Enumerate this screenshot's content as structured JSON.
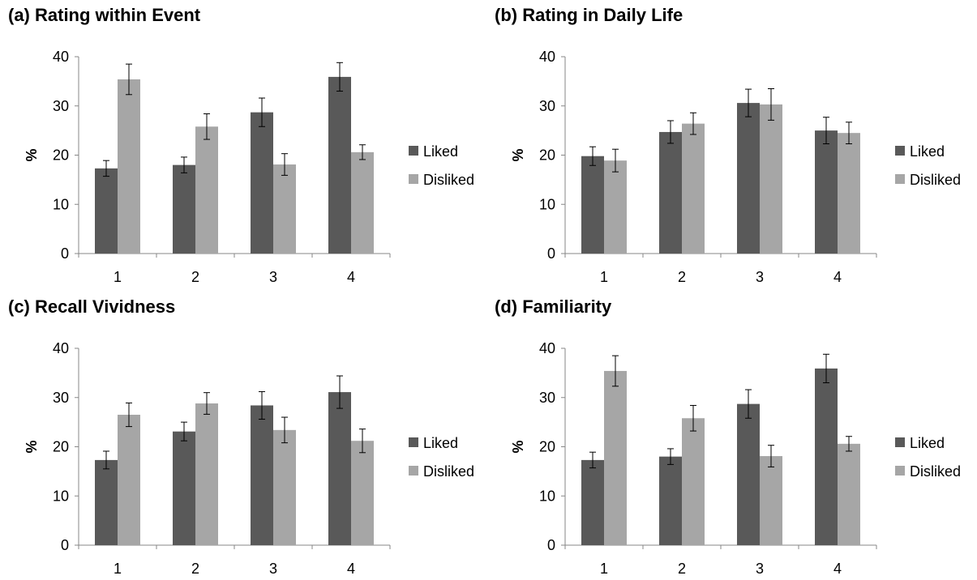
{
  "colors": {
    "liked": "#595959",
    "disliked": "#a6a6a6",
    "axis": "#878787",
    "error": "#000000"
  },
  "chart_data": [
    {
      "type": "bar",
      "title": "(a) Rating within Event",
      "ylabel": "%",
      "xlabel": "",
      "ylim": [
        0,
        40
      ],
      "yticks": [
        0,
        10,
        20,
        30,
        40
      ],
      "categories": [
        "1",
        "2",
        "3",
        "4"
      ],
      "legend_position": "right",
      "series": [
        {
          "name": "Liked",
          "values": [
            17.3,
            18.0,
            28.7,
            35.9
          ],
          "errors": [
            1.6,
            1.6,
            2.9,
            2.9
          ]
        },
        {
          "name": "Disliked",
          "values": [
            35.4,
            25.8,
            18.1,
            20.6
          ],
          "errors": [
            3.1,
            2.6,
            2.2,
            1.5
          ]
        }
      ]
    },
    {
      "type": "bar",
      "title": "(b) Rating in Daily Life",
      "ylabel": "%",
      "xlabel": "",
      "ylim": [
        0,
        40
      ],
      "yticks": [
        0,
        10,
        20,
        30,
        40
      ],
      "categories": [
        "1",
        "2",
        "3",
        "4"
      ],
      "legend_position": "right",
      "series": [
        {
          "name": "Liked",
          "values": [
            19.8,
            24.7,
            30.6,
            25.0
          ],
          "errors": [
            1.9,
            2.3,
            2.8,
            2.7
          ]
        },
        {
          "name": "Disliked",
          "values": [
            18.9,
            26.4,
            30.3,
            24.5
          ],
          "errors": [
            2.3,
            2.2,
            3.2,
            2.2
          ]
        }
      ]
    },
    {
      "type": "bar",
      "title": "(c) Recall Vividness",
      "ylabel": "%",
      "xlabel": "",
      "ylim": [
        0,
        40
      ],
      "yticks": [
        0,
        10,
        20,
        30,
        40
      ],
      "categories": [
        "1",
        "2",
        "3",
        "4"
      ],
      "legend_position": "right",
      "series": [
        {
          "name": "Liked",
          "values": [
            17.3,
            23.1,
            28.4,
            31.1
          ],
          "errors": [
            1.8,
            1.9,
            2.8,
            3.3
          ]
        },
        {
          "name": "Disliked",
          "values": [
            26.5,
            28.8,
            23.4,
            21.2
          ],
          "errors": [
            2.4,
            2.2,
            2.6,
            2.4
          ]
        }
      ]
    },
    {
      "type": "bar",
      "title": "(d) Familiarity",
      "ylabel": "%",
      "xlabel": "",
      "ylim": [
        0,
        40
      ],
      "yticks": [
        0,
        10,
        20,
        30,
        40
      ],
      "categories": [
        "1",
        "2",
        "3",
        "4"
      ],
      "legend_position": "right",
      "series": [
        {
          "name": "Liked",
          "values": [
            17.3,
            18.0,
            28.7,
            35.9
          ],
          "errors": [
            1.6,
            1.6,
            2.9,
            2.9
          ]
        },
        {
          "name": "Disliked",
          "values": [
            35.4,
            25.8,
            18.1,
            20.6
          ],
          "errors": [
            3.1,
            2.6,
            2.2,
            1.5
          ]
        }
      ]
    }
  ]
}
